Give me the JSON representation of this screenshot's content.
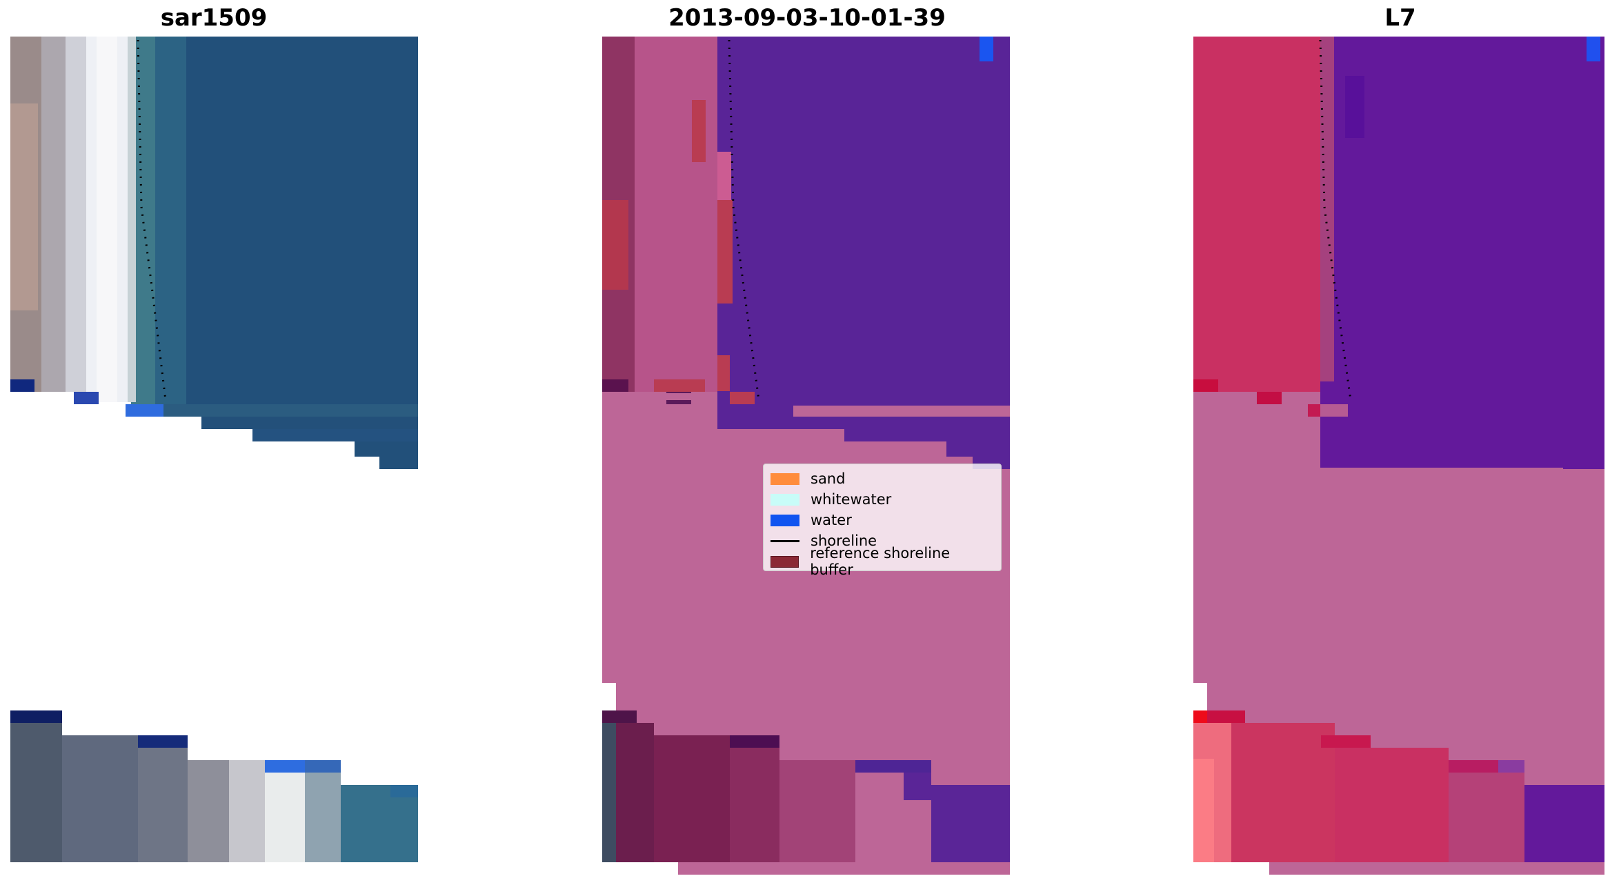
{
  "panels": [
    {
      "title": "sar1509"
    },
    {
      "title": "2013-09-03-10-01-39"
    },
    {
      "title": "L7"
    }
  ],
  "legend": {
    "items": [
      {
        "label": "sand",
        "color": "#ff8c3c"
      },
      {
        "label": "whitewater",
        "color": "#c8fcf8"
      },
      {
        "label": "water",
        "color": "#1054f0"
      },
      {
        "label": "shoreline",
        "color": "#000000"
      },
      {
        "label": "reference shoreline buffer",
        "color": "#8b2835"
      }
    ]
  },
  "colors": {
    "sat_water": "#23507a",
    "sat_shallow": "#2f6685",
    "sat_beach": "#e8e8ea",
    "sat_land": "#9a8e8c",
    "class_water": "#5a2597",
    "class_buffer": "#bd6697",
    "class_land": "#8f3362",
    "class_wetland": "#b7344e",
    "l7_land": "#c93062",
    "l7_water": "#63199b"
  }
}
